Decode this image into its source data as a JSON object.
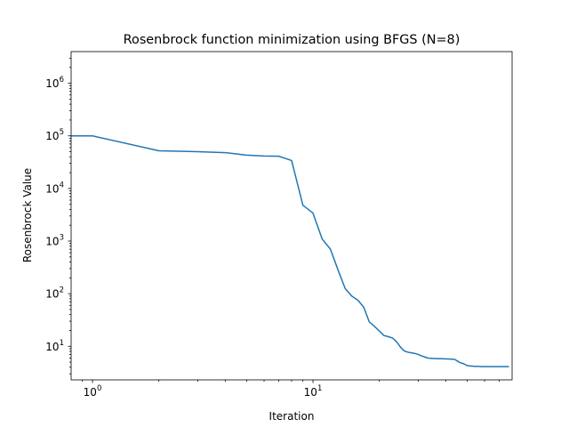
{
  "chart_data": {
    "type": "line",
    "title": "Rosenbrock function minimization using BFGS (N=8)",
    "xlabel": "Iteration",
    "ylabel": "Rosenbrock Value",
    "xscale": "log",
    "yscale": "log",
    "xlim": [
      0.8,
      80
    ],
    "ylim": [
      2.3,
      4000000
    ],
    "x_ticks": [
      {
        "value": 1,
        "base": "10",
        "exp": "0"
      },
      {
        "value": 10,
        "base": "10",
        "exp": "1"
      }
    ],
    "y_ticks": [
      {
        "value": 10,
        "base": "10",
        "exp": "1"
      },
      {
        "value": 100,
        "base": "10",
        "exp": "2"
      },
      {
        "value": 1000,
        "base": "10",
        "exp": "3"
      },
      {
        "value": 10000,
        "base": "10",
        "exp": "4"
      },
      {
        "value": 100000,
        "base": "10",
        "exp": "5"
      },
      {
        "value": 1000000,
        "base": "10",
        "exp": "6"
      }
    ],
    "grid": false,
    "legend": "none",
    "colors": {
      "line": "#1f77b4"
    },
    "series": [
      {
        "x": [
          1,
          2,
          3,
          4,
          5,
          6,
          7,
          8,
          9,
          10,
          11,
          12,
          13,
          14,
          15,
          16,
          17,
          18,
          19,
          20,
          21,
          22,
          23,
          24,
          25,
          26,
          27,
          28,
          29,
          30,
          31,
          32,
          33,
          34,
          35,
          36,
          37,
          38,
          39,
          40,
          41,
          42,
          43,
          44,
          45,
          46,
          47,
          48,
          49,
          50,
          51,
          52,
          53,
          54,
          55,
          56,
          57,
          58,
          59,
          60,
          61,
          62,
          63,
          64,
          65,
          66,
          67,
          68,
          69,
          70,
          71,
          72,
          73,
          74,
          75,
          76,
          77
        ],
        "y": [
          100000,
          52000,
          50000,
          48000,
          43000,
          41500,
          41000,
          34000,
          4800,
          3400,
          1100,
          700,
          280,
          125,
          90,
          75,
          55,
          29,
          24,
          19.5,
          16,
          15.2,
          14.3,
          12,
          9.5,
          8.1,
          7.7,
          7.5,
          7.3,
          7.0,
          6.6,
          6.3,
          6.0,
          5.9,
          5.85,
          5.85,
          5.8,
          5.8,
          5.8,
          5.75,
          5.75,
          5.7,
          5.7,
          5.6,
          5.3,
          5.0,
          4.8,
          4.7,
          4.5,
          4.3,
          4.25,
          4.2,
          4.2,
          4.15,
          4.15,
          4.15,
          4.15,
          4.1,
          4.1,
          4.1,
          4.1,
          4.1,
          4.1,
          4.1,
          4.1,
          4.1,
          4.1,
          4.1,
          4.1,
          4.1,
          4.1,
          4.1,
          4.1,
          4.1,
          4.1,
          4.1,
          4.1
        ]
      }
    ]
  }
}
